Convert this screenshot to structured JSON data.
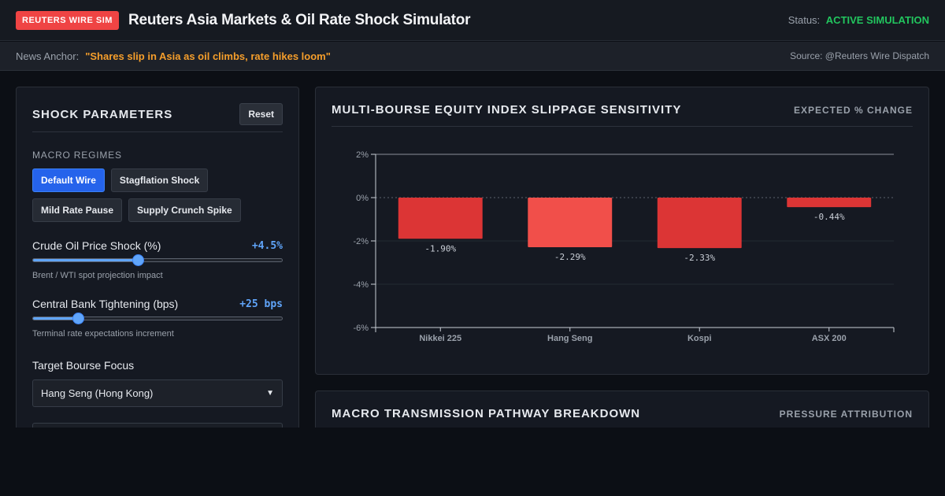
{
  "header": {
    "badge": "REUTERS WIRE SIM",
    "title": "Reuters Asia Markets & Oil Rate Shock Simulator",
    "status_label": "Status:",
    "status_value": "ACTIVE SIMULATION",
    "status_color": "#22c55e"
  },
  "news": {
    "label": "News Anchor:",
    "headline": "\"Shares slip in Asia as oil climbs, rate hikes loom\"",
    "source": "Source: @Reuters Wire Dispatch"
  },
  "controls": {
    "title": "SHOCK PARAMETERS",
    "reset_label": "Reset",
    "regimes_label": "MACRO REGIMES",
    "regimes": [
      {
        "label": "Default Wire",
        "active": true
      },
      {
        "label": "Stagflation Shock",
        "active": false
      },
      {
        "label": "Mild Rate Pause",
        "active": false
      },
      {
        "label": "Supply Crunch Spike",
        "active": false
      }
    ],
    "oil": {
      "label": "Crude Oil Price Shock (%)",
      "value": "+4.5%",
      "fill_fraction": 0.42,
      "help": "Brent / WTI spot projection impact"
    },
    "rate": {
      "label": "Central Bank Tightening (bps)",
      "value": "+25 bps",
      "fill_fraction": 0.18,
      "help": "Terminal rate expectations increment"
    },
    "bourse": {
      "label": "Target Bourse Focus",
      "selected": "Hang Seng (Hong Kong)"
    }
  },
  "chart_panel": {
    "title": "MULTI-BOURSE EQUITY INDEX SLIPPAGE SENSITIVITY",
    "subtitle": "EXPECTED % CHANGE"
  },
  "chart_data": {
    "type": "bar",
    "categories": [
      "Nikkei 225",
      "Hang Seng",
      "Kospi",
      "ASX 200"
    ],
    "values": [
      -1.9,
      -2.29,
      -2.33,
      -0.44
    ],
    "data_labels": [
      "-1.90%",
      "-2.29%",
      "-2.33%",
      "-0.44%"
    ],
    "highlighted_category": "Hang Seng",
    "bar_color": "#dc3535",
    "highlight_color": "#f14f4a",
    "ylim": [
      -6,
      2
    ],
    "yticks": [
      2,
      0,
      -2,
      -4,
      -6
    ],
    "ytick_labels": [
      "2%",
      "0%",
      "-2%",
      "-4%",
      "-6%"
    ],
    "grid": true
  },
  "pathway": {
    "title": "MACRO TRANSMISSION PATHWAY BREAKDOWN",
    "subtitle": "PRESSURE ATTRIBUTION"
  }
}
